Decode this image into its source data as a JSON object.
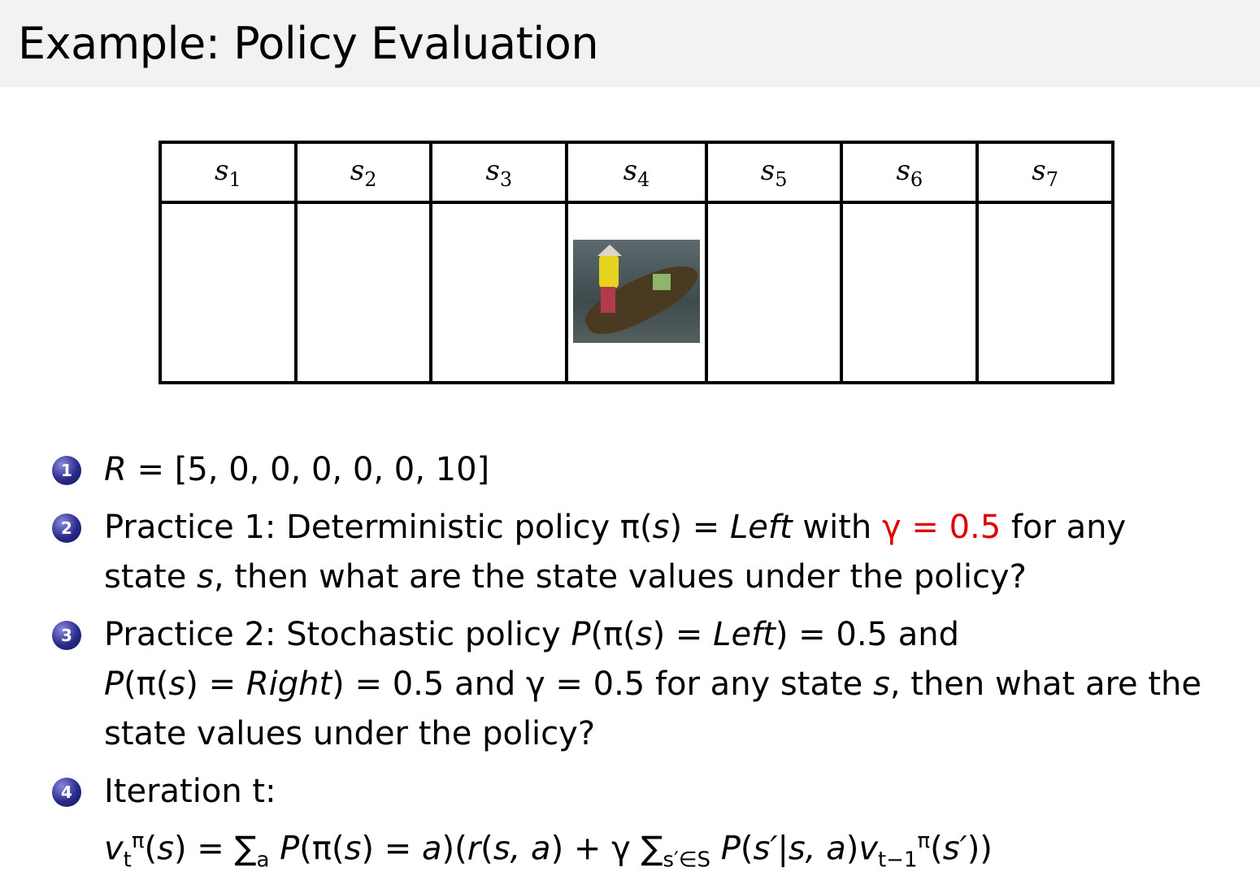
{
  "title": "Example: Policy Evaluation",
  "table": {
    "states": [
      {
        "name": "s",
        "sub": "1"
      },
      {
        "name": "s",
        "sub": "2"
      },
      {
        "name": "s",
        "sub": "3"
      },
      {
        "name": "s",
        "sub": "4"
      },
      {
        "name": "s",
        "sub": "5"
      },
      {
        "name": "s",
        "sub": "6"
      },
      {
        "name": "s",
        "sub": "7"
      }
    ],
    "image_state_index": 3,
    "image_icon": "boat-with-person-photo"
  },
  "bullet_color": "#2a2a8a",
  "accent_color": "#e00000",
  "items": [
    {
      "num": "1",
      "lines": [
        [
          {
            "t": "R",
            "s": "i"
          },
          {
            "t": " = [5, 0, 0, 0, 0, 0, 10]",
            "s": ""
          }
        ]
      ]
    },
    {
      "num": "2",
      "lines": [
        [
          {
            "t": "Practice 1: Deterministic policy π(",
            "s": ""
          },
          {
            "t": "s",
            "s": "i"
          },
          {
            "t": ") = ",
            "s": ""
          },
          {
            "t": "Left",
            "s": "i"
          },
          {
            "t": " with ",
            "s": ""
          },
          {
            "t": "γ = 0.5",
            "s": "red"
          },
          {
            "t": " for any",
            "s": ""
          }
        ],
        [
          {
            "t": "state ",
            "s": ""
          },
          {
            "t": "s",
            "s": "i"
          },
          {
            "t": ", then what are the state values under the policy?",
            "s": ""
          }
        ]
      ]
    },
    {
      "num": "3",
      "lines": [
        [
          {
            "t": "Practice 2: Stochastic policy ",
            "s": ""
          },
          {
            "t": "P",
            "s": "i"
          },
          {
            "t": "(π(",
            "s": ""
          },
          {
            "t": "s",
            "s": "i"
          },
          {
            "t": ") = ",
            "s": ""
          },
          {
            "t": "Left",
            "s": "i"
          },
          {
            "t": ") = 0.5 and",
            "s": ""
          }
        ],
        [
          {
            "t": "P",
            "s": "i"
          },
          {
            "t": "(π(",
            "s": ""
          },
          {
            "t": "s",
            "s": "i"
          },
          {
            "t": ") = ",
            "s": ""
          },
          {
            "t": "Right",
            "s": "i"
          },
          {
            "t": ") = 0.5 and γ = 0.5 for any state ",
            "s": ""
          },
          {
            "t": "s",
            "s": "i"
          },
          {
            "t": ", then what are the",
            "s": ""
          }
        ],
        [
          {
            "t": "state values under the policy?",
            "s": ""
          }
        ]
      ]
    },
    {
      "num": "4",
      "lines": [
        [
          {
            "t": "Iteration t:",
            "s": ""
          }
        ],
        [
          {
            "t": "v",
            "s": "i"
          },
          {
            "t": "t",
            "s": "sub"
          },
          {
            "t": "π",
            "s": "sup"
          },
          {
            "t": "(",
            "s": ""
          },
          {
            "t": "s",
            "s": "i"
          },
          {
            "t": ") = ∑",
            "s": ""
          },
          {
            "t": "a",
            "s": "sub"
          },
          {
            "t": " P",
            "s": "i"
          },
          {
            "t": "(π(",
            "s": ""
          },
          {
            "t": "s",
            "s": "i"
          },
          {
            "t": ") = ",
            "s": ""
          },
          {
            "t": "a",
            "s": "i"
          },
          {
            "t": ")(",
            "s": ""
          },
          {
            "t": "r",
            "s": "i"
          },
          {
            "t": "(",
            "s": ""
          },
          {
            "t": "s, a",
            "s": "i"
          },
          {
            "t": ") + γ ∑",
            "s": ""
          },
          {
            "t": "s′∈S",
            "s": "sub"
          },
          {
            "t": " P",
            "s": "i"
          },
          {
            "t": "(",
            "s": ""
          },
          {
            "t": "s′",
            "s": "i"
          },
          {
            "t": "|",
            "s": ""
          },
          {
            "t": "s, a",
            "s": "i"
          },
          {
            "t": ")",
            "s": ""
          },
          {
            "t": "v",
            "s": "i"
          },
          {
            "t": "t−1",
            "s": "sub"
          },
          {
            "t": "π",
            "s": "sup"
          },
          {
            "t": "(",
            "s": ""
          },
          {
            "t": "s′",
            "s": "i"
          },
          {
            "t": "))",
            "s": ""
          }
        ]
      ]
    }
  ]
}
